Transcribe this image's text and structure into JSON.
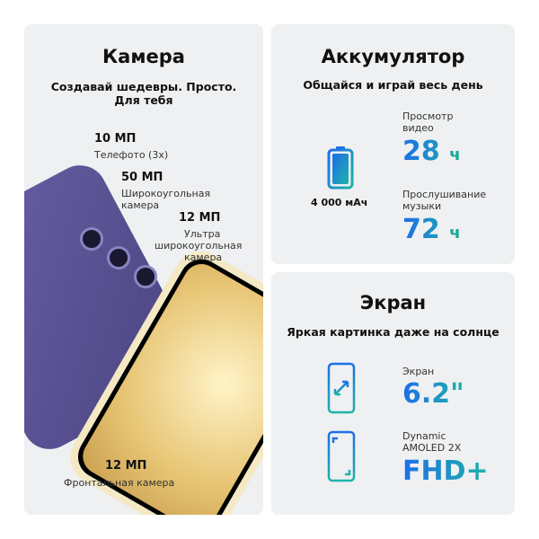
{
  "camera": {
    "title": "Камера",
    "subtitle_line1": "Создавай шедевры. Просто.",
    "subtitle_line2": "Для тебя",
    "tele": {
      "value": "10 МП",
      "label": "Телефото (3х)"
    },
    "wide": {
      "value": "50 МП",
      "label1": "Широкоугольная",
      "label2": "камера"
    },
    "ultra": {
      "value": "12 МП",
      "label1": "Ультра",
      "label2": "широкоугольная",
      "label3": "камера"
    },
    "front": {
      "value": "12 МП",
      "label": "Фронтальная камера"
    }
  },
  "battery": {
    "title": "Аккумулятор",
    "subtitle": "Общайся и играй весь день",
    "capacity": "4 000 мАч",
    "video": {
      "label1": "Просмотр",
      "label2": "видео",
      "value": "28",
      "unit": "ч"
    },
    "music": {
      "label1": "Прослушивание",
      "label2": "музыки",
      "value": "72",
      "unit": "ч"
    },
    "icon": "battery-icon"
  },
  "screen": {
    "title": "Экран",
    "subtitle": "Яркая картинка даже на солнце",
    "size": {
      "label": "Экран",
      "value": "6.2\""
    },
    "type": {
      "label1": "Dynamic",
      "label2": "AMOLED 2X",
      "value": "FHD+"
    }
  },
  "colors": {
    "accent_blue": "#1e6ee8",
    "accent_teal": "#1fb3a8",
    "panel": "#eef0f2"
  }
}
